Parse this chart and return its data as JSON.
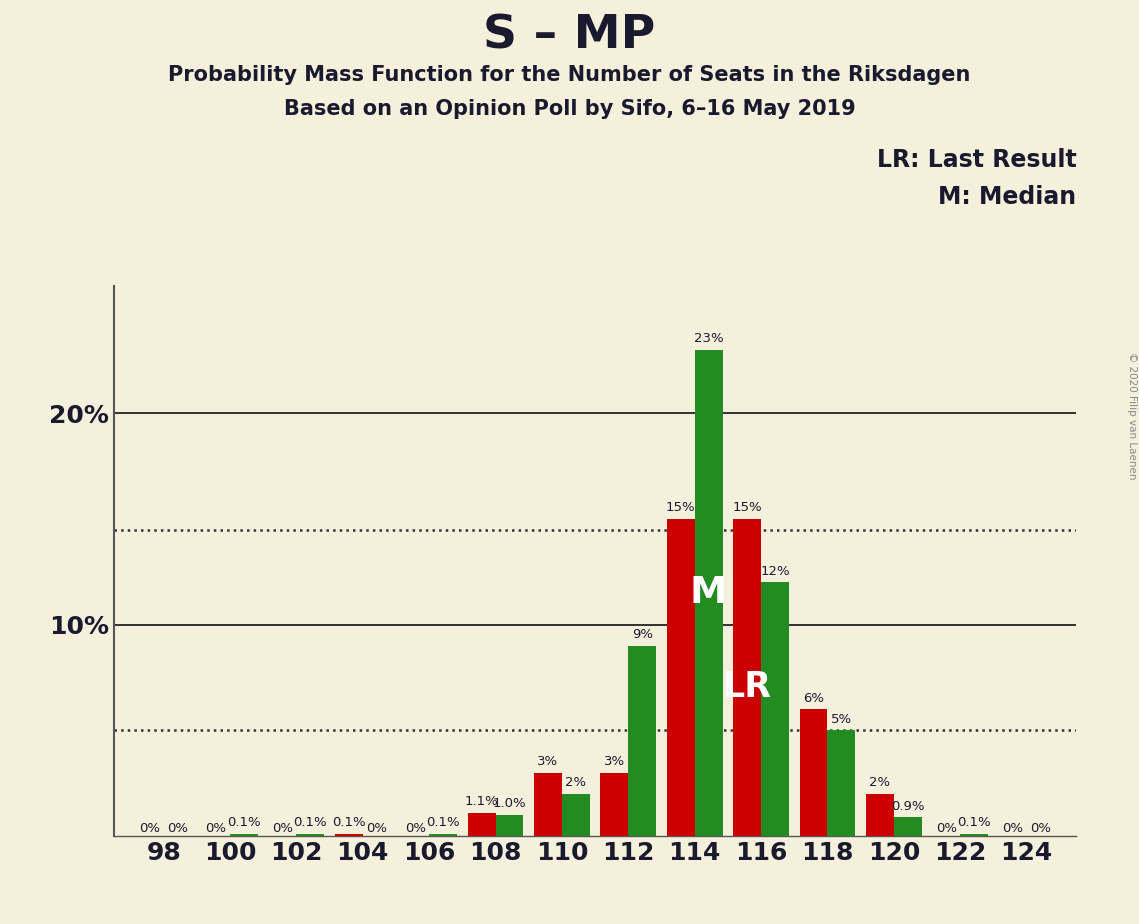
{
  "title": "S – MP",
  "subtitle1": "Probability Mass Function for the Number of Seats in the Riksdagen",
  "subtitle2": "Based on an Opinion Poll by Sifo, 6–16 May 2019",
  "legend_lr": "LR: Last Result",
  "legend_m": "M: Median",
  "copyright": "© 2020 Filip van Laenen",
  "background_color": "#f5f0dc",
  "red_color": "#cc0000",
  "green_color": "#228B22",
  "text_color": "#1a1a2e",
  "even_seats": [
    98,
    100,
    102,
    104,
    106,
    108,
    110,
    112,
    114,
    116,
    118,
    120,
    122,
    124
  ],
  "red_values": [
    0.0,
    0.0,
    0.0,
    0.1,
    0.0,
    1.1,
    3.0,
    3.0,
    15.0,
    15.0,
    6.0,
    2.0,
    0.0,
    0.0
  ],
  "green_values": [
    0.0,
    0.1,
    0.1,
    0.0,
    0.1,
    1.0,
    2.0,
    9.0,
    23.0,
    12.0,
    5.0,
    0.9,
    0.1,
    0.0
  ],
  "red_labels": [
    "0%",
    "0%",
    "0%",
    "0.1%",
    "0%",
    "1.1%",
    "3%",
    "3%",
    "15%",
    "15%",
    "6%",
    "2%",
    "0%",
    "0%"
  ],
  "green_labels": [
    "0%",
    "0.1%",
    "0.1%",
    "0%",
    "0.1%",
    "1.0%",
    "2%",
    "9%",
    "23%",
    "12%",
    "5%",
    "0.9%",
    "0.1%",
    "0%"
  ],
  "xtick_seats": [
    98,
    100,
    102,
    104,
    106,
    108,
    110,
    112,
    114,
    116,
    118,
    120,
    122,
    124
  ],
  "ytick_values": [
    0,
    10,
    20
  ],
  "ytick_labels": [
    "",
    "10%",
    "20%"
  ],
  "ylim": [
    0,
    26
  ],
  "dotted_lines": [
    5.0,
    14.5
  ],
  "median_idx": 8,
  "lr_idx": 9,
  "title_fontsize": 34,
  "subtitle_fontsize": 15,
  "bar_label_fontsize": 9.5,
  "axis_label_fontsize": 18,
  "legend_fontsize": 17
}
